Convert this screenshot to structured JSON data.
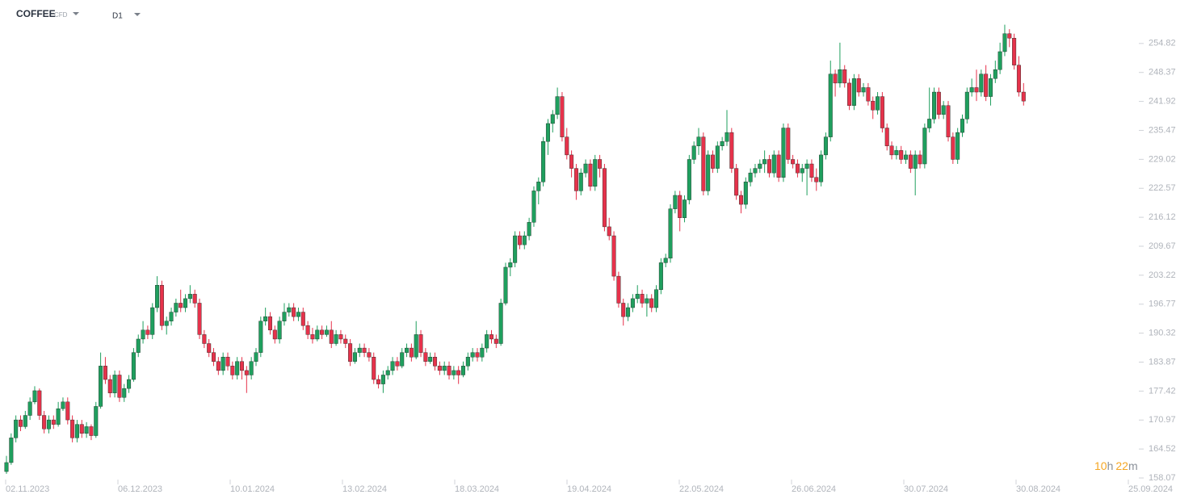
{
  "header": {
    "symbol": "COFFEE",
    "instrument": "CFD",
    "timeframe": "D1"
  },
  "countdown": [
    "10",
    "h",
    "22",
    "m"
  ],
  "chart_data": {
    "type": "candlestick",
    "up_color": "#1f9f5e",
    "down_color": "#e6324b",
    "ylim": [
      158.07,
      264.5
    ],
    "yticks": [
      158.07,
      164.52,
      170.97,
      177.42,
      183.87,
      190.32,
      196.77,
      203.22,
      209.67,
      216.12,
      222.57,
      229.02,
      235.47,
      241.92,
      248.37,
      254.82
    ],
    "xtick_labels": [
      "02.11.2023",
      "06.12.2023",
      "10.01.2024",
      "13.02.2024",
      "18.03.2024",
      "19.04.2024",
      "22.05.2024",
      "26.06.2024",
      "30.07.2024",
      "30.08.2024",
      "25.09.2024"
    ],
    "ohlc": [
      [
        159.5,
        163,
        159,
        161.5
      ],
      [
        161.5,
        168,
        161,
        167
      ],
      [
        167,
        172,
        166,
        171
      ],
      [
        171,
        172,
        168.5,
        169.5
      ],
      [
        169.5,
        173,
        169,
        172
      ],
      [
        172,
        176,
        171,
        175
      ],
      [
        175,
        178.5,
        174.5,
        177.5
      ],
      [
        177.5,
        178,
        171,
        172
      ],
      [
        172,
        173,
        168,
        169
      ],
      [
        169,
        172,
        168,
        171
      ],
      [
        171,
        172,
        169,
        170
      ],
      [
        170,
        175,
        169.5,
        173.5
      ],
      [
        173.5,
        176,
        173,
        175
      ],
      [
        175,
        176,
        170,
        171
      ],
      [
        171,
        172,
        166,
        167
      ],
      [
        167,
        171,
        166,
        170
      ],
      [
        170,
        171,
        167,
        168
      ],
      [
        168,
        170.5,
        167,
        169.5
      ],
      [
        169.5,
        170,
        166.5,
        167.5
      ],
      [
        167.5,
        175,
        167,
        174
      ],
      [
        174,
        186,
        173.5,
        183
      ],
      [
        183,
        185,
        179,
        180
      ],
      [
        180,
        181,
        176,
        177
      ],
      [
        177,
        182,
        176,
        181
      ],
      [
        181,
        182,
        175,
        176
      ],
      [
        176,
        179,
        175,
        178
      ],
      [
        178,
        181,
        177,
        180
      ],
      [
        180,
        187,
        179.5,
        186
      ],
      [
        186,
        190,
        185,
        189
      ],
      [
        189,
        193,
        188,
        191
      ],
      [
        191,
        192,
        189,
        190
      ],
      [
        190,
        197,
        189,
        196
      ],
      [
        196,
        203,
        195,
        201
      ],
      [
        201,
        202,
        191,
        192
      ],
      [
        192,
        194,
        190,
        193
      ],
      [
        193,
        196,
        192,
        195
      ],
      [
        195,
        198,
        194,
        197
      ],
      [
        197,
        200,
        195,
        196
      ],
      [
        196,
        199,
        195,
        198
      ],
      [
        198,
        201,
        197,
        199
      ],
      [
        199,
        200,
        196,
        197
      ],
      [
        197,
        198,
        189,
        190
      ],
      [
        190,
        191,
        187,
        188
      ],
      [
        188,
        189,
        185,
        186
      ],
      [
        186,
        187,
        183,
        184
      ],
      [
        184,
        185,
        181,
        182
      ],
      [
        182,
        186,
        181,
        185
      ],
      [
        185,
        186,
        182,
        183
      ],
      [
        183,
        184,
        180,
        181
      ],
      [
        181,
        185,
        180,
        184
      ],
      [
        184,
        185,
        180,
        182
      ],
      [
        182,
        183,
        177,
        181
      ],
      [
        181,
        185,
        180,
        184
      ],
      [
        184,
        187,
        183,
        186
      ],
      [
        186,
        194,
        185,
        193
      ],
      [
        193,
        196,
        192,
        194
      ],
      [
        194,
        195,
        190,
        191
      ],
      [
        191,
        192,
        188,
        189
      ],
      [
        189,
        194,
        188,
        193
      ],
      [
        193,
        197,
        192,
        195
      ],
      [
        195,
        197,
        194,
        196
      ],
      [
        196,
        197,
        193,
        194
      ],
      [
        194,
        196,
        193,
        195
      ],
      [
        195,
        196,
        191,
        192
      ],
      [
        192,
        193,
        189,
        190
      ],
      [
        190,
        191.5,
        188,
        189
      ],
      [
        189,
        192,
        188.5,
        191
      ],
      [
        191,
        192,
        189,
        190
      ],
      [
        190,
        192,
        189.5,
        191
      ],
      [
        191,
        193,
        187,
        188
      ],
      [
        188,
        191,
        187.5,
        190
      ],
      [
        190,
        191,
        188,
        189
      ],
      [
        189,
        190,
        187,
        188
      ],
      [
        188,
        189,
        183,
        184
      ],
      [
        184,
        187,
        183.5,
        186
      ],
      [
        186,
        188,
        185,
        187
      ],
      [
        187,
        188,
        185,
        186
      ],
      [
        186,
        187,
        184,
        185
      ],
      [
        185,
        186,
        179,
        180
      ],
      [
        180,
        181,
        178,
        179
      ],
      [
        179,
        182,
        177,
        181
      ],
      [
        181,
        183,
        180,
        182
      ],
      [
        182,
        185,
        181,
        184
      ],
      [
        184,
        185,
        182,
        183
      ],
      [
        183,
        187,
        182.5,
        186
      ],
      [
        186,
        188,
        185,
        187
      ],
      [
        187,
        188,
        184,
        185
      ],
      [
        185,
        193,
        184.5,
        190
      ],
      [
        190,
        191,
        185,
        186
      ],
      [
        186,
        187,
        183,
        184
      ],
      [
        184,
        186,
        183.5,
        185
      ],
      [
        185,
        186,
        182,
        183
      ],
      [
        183,
        184,
        181,
        182
      ],
      [
        182,
        184,
        181,
        183
      ],
      [
        183,
        184,
        180,
        181
      ],
      [
        181,
        183,
        180,
        182
      ],
      [
        182,
        183,
        179,
        181
      ],
      [
        181,
        184,
        180.5,
        183
      ],
      [
        183,
        186,
        182,
        185
      ],
      [
        185,
        187,
        184,
        186
      ],
      [
        186,
        187,
        184,
        185
      ],
      [
        185,
        188,
        184,
        187
      ],
      [
        187,
        191,
        186,
        190
      ],
      [
        190,
        191,
        188,
        189
      ],
      [
        189,
        190,
        187,
        188
      ],
      [
        188,
        198,
        187.5,
        197
      ],
      [
        197,
        206,
        196.5,
        205
      ],
      [
        205,
        207,
        203,
        206
      ],
      [
        206,
        213,
        205,
        212
      ],
      [
        212,
        213,
        209,
        210
      ],
      [
        210,
        213,
        209,
        212
      ],
      [
        212,
        216,
        211,
        215
      ],
      [
        215,
        223,
        214,
        222
      ],
      [
        222,
        225,
        219,
        224
      ],
      [
        224,
        234,
        223,
        233
      ],
      [
        233,
        238,
        230,
        237
      ],
      [
        237,
        240,
        235,
        239
      ],
      [
        239,
        245,
        238,
        243
      ],
      [
        243,
        244,
        233,
        234
      ],
      [
        234,
        236,
        229,
        230
      ],
      [
        230,
        231,
        225,
        227
      ],
      [
        227,
        228,
        220,
        222
      ],
      [
        222,
        227,
        221,
        226
      ],
      [
        226,
        229,
        225,
        228
      ],
      [
        228,
        229,
        222,
        223
      ],
      [
        223,
        230,
        222,
        229
      ],
      [
        229,
        230,
        225,
        227
      ],
      [
        227,
        228,
        213,
        214
      ],
      [
        214,
        216,
        211,
        212
      ],
      [
        212,
        213,
        202,
        203
      ],
      [
        203,
        204,
        196,
        197
      ],
      [
        197,
        198,
        192,
        194
      ],
      [
        194,
        197,
        193,
        196
      ],
      [
        196,
        199,
        195,
        198
      ],
      [
        198,
        201,
        197,
        199
      ],
      [
        199,
        200,
        196,
        197
      ],
      [
        197,
        199,
        194,
        198
      ],
      [
        198,
        199,
        195,
        196
      ],
      [
        196,
        201,
        195,
        200
      ],
      [
        200,
        207,
        199,
        206
      ],
      [
        206,
        208,
        205,
        207
      ],
      [
        207,
        219,
        206,
        218
      ],
      [
        218,
        222,
        217,
        221
      ],
      [
        221,
        222,
        213,
        216
      ],
      [
        216,
        221,
        215,
        220
      ],
      [
        220,
        230,
        219,
        229
      ],
      [
        229,
        233,
        228,
        232
      ],
      [
        232,
        236,
        230,
        234
      ],
      [
        234,
        235,
        221,
        222
      ],
      [
        222,
        231,
        221,
        230
      ],
      [
        230,
        231,
        226,
        227
      ],
      [
        227,
        233,
        226,
        232
      ],
      [
        232,
        234,
        231,
        233
      ],
      [
        233,
        240,
        232,
        235
      ],
      [
        235,
        236,
        226,
        227
      ],
      [
        227,
        228,
        220,
        221
      ],
      [
        221,
        222,
        217,
        219
      ],
      [
        219,
        225,
        218,
        224
      ],
      [
        224,
        227,
        223,
        226
      ],
      [
        226,
        228,
        225,
        227
      ],
      [
        227,
        229,
        226,
        228
      ],
      [
        228,
        231,
        226,
        229
      ],
      [
        229,
        230,
        225,
        226
      ],
      [
        226,
        231,
        225,
        230
      ],
      [
        230,
        231,
        224,
        225
      ],
      [
        225,
        237,
        224,
        236
      ],
      [
        236,
        237,
        228,
        229
      ],
      [
        229,
        230,
        227,
        228
      ],
      [
        228,
        229,
        225,
        226
      ],
      [
        226,
        228,
        224,
        227
      ],
      [
        227,
        229,
        221,
        228
      ],
      [
        228,
        229,
        224,
        225
      ],
      [
        225,
        227,
        222,
        224
      ],
      [
        224,
        231,
        223,
        230
      ],
      [
        230,
        235,
        229,
        234
      ],
      [
        234,
        251,
        233,
        248
      ],
      [
        248,
        249,
        243,
        246
      ],
      [
        246,
        255,
        245,
        249
      ],
      [
        249,
        250,
        245,
        246
      ],
      [
        246,
        247,
        240,
        241
      ],
      [
        241,
        248,
        240,
        247
      ],
      [
        247,
        248,
        243,
        244
      ],
      [
        244,
        246,
        243,
        245
      ],
      [
        245,
        246,
        241,
        242
      ],
      [
        242,
        243,
        238,
        240
      ],
      [
        240,
        244,
        239,
        243
      ],
      [
        243,
        244,
        235,
        236
      ],
      [
        236,
        237,
        231,
        232
      ],
      [
        232,
        233,
        229,
        230
      ],
      [
        230,
        232,
        229,
        231
      ],
      [
        231,
        232,
        228,
        229
      ],
      [
        229,
        231,
        228,
        230
      ],
      [
        230,
        231,
        226,
        227
      ],
      [
        227,
        231,
        221,
        230
      ],
      [
        230,
        231,
        227,
        228
      ],
      [
        228,
        237,
        227,
        236
      ],
      [
        236,
        245,
        235,
        238
      ],
      [
        238,
        245,
        237,
        244
      ],
      [
        244,
        245,
        238,
        239
      ],
      [
        239,
        242,
        238,
        241
      ],
      [
        241,
        242,
        233,
        234
      ],
      [
        234,
        235,
        228,
        229
      ],
      [
        229,
        236,
        228,
        235
      ],
      [
        235,
        239,
        234,
        238
      ],
      [
        238,
        245,
        237,
        244
      ],
      [
        244,
        247,
        243,
        245
      ],
      [
        245,
        249,
        242,
        244
      ],
      [
        244,
        249,
        243,
        248
      ],
      [
        248,
        250,
        242,
        243
      ],
      [
        243,
        248,
        241,
        247
      ],
      [
        247,
        251,
        246,
        249
      ],
      [
        249,
        255,
        248,
        253
      ],
      [
        253,
        259,
        252,
        257
      ],
      [
        257,
        258,
        254,
        256
      ],
      [
        256,
        257,
        249,
        250
      ],
      [
        250,
        252,
        243,
        244
      ],
      [
        244,
        246,
        241,
        242
      ]
    ]
  }
}
